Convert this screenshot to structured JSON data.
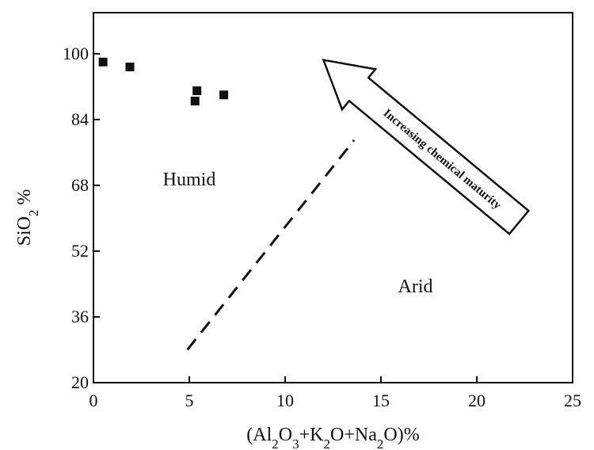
{
  "chart_data": {
    "type": "scatter",
    "xlabel_parts": [
      {
        "t": "(Al",
        "sub": false
      },
      {
        "t": "2",
        "sub": true
      },
      {
        "t": "O",
        "sub": false
      },
      {
        "t": "3",
        "sub": true
      },
      {
        "t": "+K",
        "sub": false
      },
      {
        "t": "2",
        "sub": true
      },
      {
        "t": "O+Na",
        "sub": false
      },
      {
        "t": "2",
        "sub": true
      },
      {
        "t": "O)%",
        "sub": false
      }
    ],
    "ylabel_parts": [
      {
        "t": "SiO",
        "sub": false
      },
      {
        "t": "2",
        "sub": true
      },
      {
        "t": " %",
        "sub": false
      }
    ],
    "xlim": [
      0,
      25
    ],
    "ylim": [
      20,
      110
    ],
    "x_ticks": [
      0,
      5,
      10,
      15,
      20,
      25
    ],
    "y_ticks": [
      20,
      36,
      52,
      68,
      84,
      100
    ],
    "x_tick_labels": [
      "0",
      "5",
      "10",
      "15",
      "20",
      "25"
    ],
    "y_tick_labels": [
      "20",
      "36",
      "52",
      "68",
      "84",
      "100"
    ],
    "points": [
      {
        "x": 0.5,
        "y": 98
      },
      {
        "x": 1.9,
        "y": 96.8
      },
      {
        "x": 5.4,
        "y": 91
      },
      {
        "x": 5.3,
        "y": 88.5
      },
      {
        "x": 6.8,
        "y": 90
      }
    ],
    "divider_line": {
      "style": "dashed",
      "from": {
        "x": 4.9,
        "y": 28
      },
      "to": {
        "x": 13.6,
        "y": 79
      }
    },
    "regions": [
      {
        "label": "Humid",
        "x": 5,
        "y": 68
      },
      {
        "label": "Arid",
        "x": 16.8,
        "y": 42
      }
    ],
    "arrow": {
      "label": "Increasing chemical maturity",
      "tail": {
        "x": 22.2,
        "y": 59
      },
      "head": {
        "x": 12,
        "y": 98.5
      }
    },
    "grid": false,
    "legend": "none"
  }
}
